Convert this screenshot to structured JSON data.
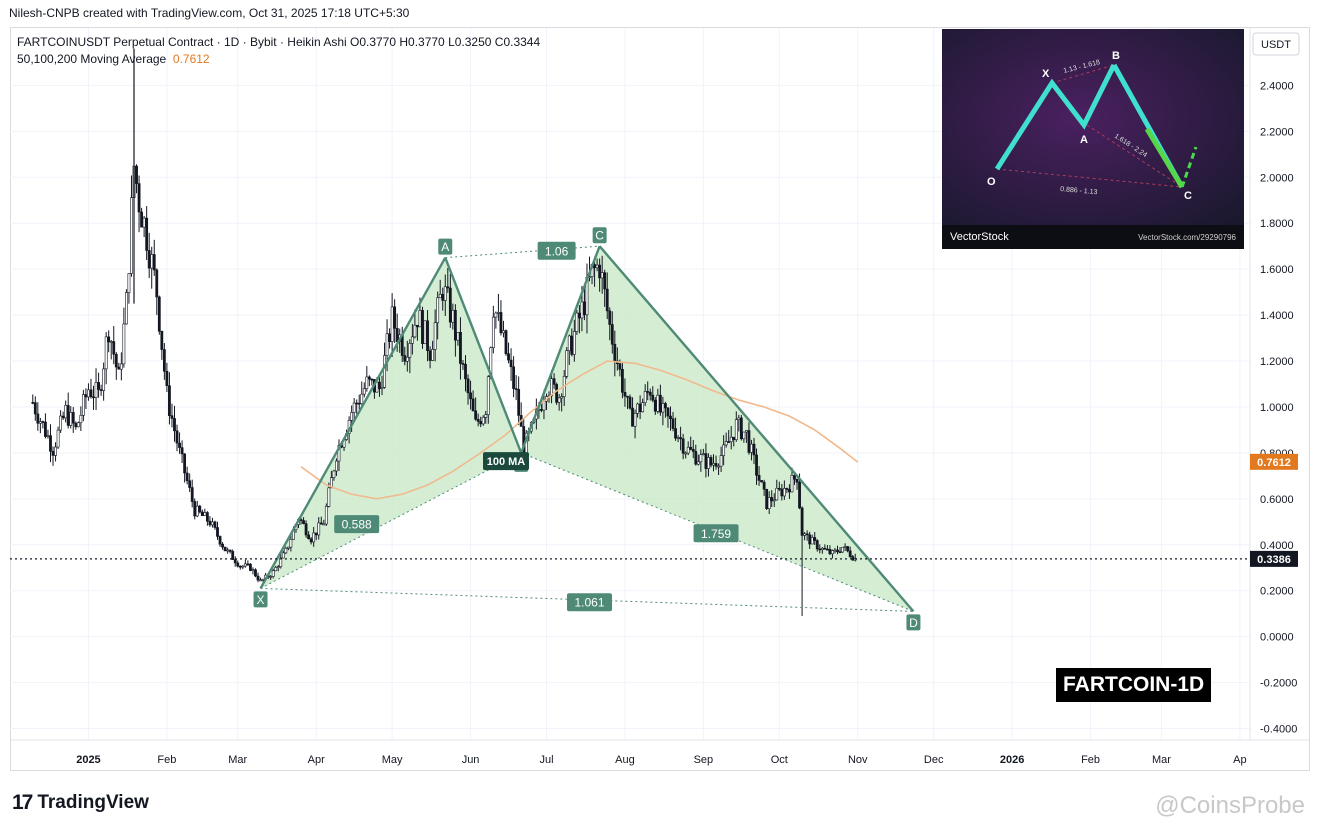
{
  "credit_line": "Nilesh-CNPB created with TradingView.com, Oct 31, 2025 17:18 UTC+5:30",
  "legend": {
    "symbol_line": "FARTCOINUSDT Perpetual Contract · 1D · Bybit · Heikin Ashi  O0.3770  H0.3770  L0.3250  C0.3344",
    "ma_label": "50,100,200 Moving Average",
    "ma_value": "0.7612"
  },
  "branding": {
    "logo_mark": "17",
    "logo_text": "TradingView",
    "watermark": "@CoinsProbe"
  },
  "inset": {
    "brand": "VectorStock",
    "url": "VectorStock.com/29290796"
  },
  "corner_label": "FARTCOIN-1D",
  "colors": {
    "candle": "#131722",
    "pattern_line": "#4f8a77",
    "pattern_fill": "#c7e8c4",
    "ma": "#f0b98e",
    "ma_badge": "#e2791f",
    "price_badge": "#131722",
    "grid": "#f0f3fa"
  },
  "chart_data": {
    "type": "candlestick",
    "title": "FARTCOINUSDT Perpetual Contract · 1D · Bybit · Heikin Ashi",
    "price_unit": "USDT",
    "ylim": [
      -0.45,
      2.65
    ],
    "y_ticks": [
      "2.4000",
      "2.2000",
      "2.0000",
      "1.8000",
      "1.6000",
      "1.4000",
      "1.2000",
      "1.0000",
      "0.8000",
      "0.6000",
      "0.4000",
      "0.2000",
      "0.0000",
      "-0.2000",
      "-0.4000"
    ],
    "y_tick_values": [
      2.4,
      2.2,
      2.0,
      1.8,
      1.6,
      1.4,
      1.2,
      1.0,
      0.8,
      0.6,
      0.4,
      0.2,
      0.0,
      -0.2,
      -0.4
    ],
    "x_ticks": [
      {
        "label": "2025",
        "date": "2025-01-01"
      },
      {
        "label": "Feb",
        "date": "2025-02-01"
      },
      {
        "label": "Mar",
        "date": "2025-03-01"
      },
      {
        "label": "Apr",
        "date": "2025-04-01"
      },
      {
        "label": "May",
        "date": "2025-05-01"
      },
      {
        "label": "Jun",
        "date": "2025-06-01"
      },
      {
        "label": "Jul",
        "date": "2025-07-01"
      },
      {
        "label": "Aug",
        "date": "2025-08-01"
      },
      {
        "label": "Sep",
        "date": "2025-09-01"
      },
      {
        "label": "Oct",
        "date": "2025-10-01"
      },
      {
        "label": "Nov",
        "date": "2025-11-01"
      },
      {
        "label": "Dec",
        "date": "2025-12-01"
      },
      {
        "label": "2026",
        "date": "2026-01-01"
      },
      {
        "label": "Feb",
        "date": "2026-02-01"
      },
      {
        "label": "Mar",
        "date": "2026-03-01"
      },
      {
        "label": "Ap",
        "date": "2026-04-01"
      }
    ],
    "last_ohlc": {
      "open": 0.377,
      "high": 0.377,
      "low": 0.325,
      "close": 0.3344
    },
    "current_price": 0.3386,
    "current_price_label": "0.3386",
    "ma_value": 0.7612,
    "ma_value_label": "0.7612",
    "ma_marker_label": "100 MA",
    "ma_marker": {
      "date": "2025-06-15",
      "price": 0.76
    },
    "price_path": [
      {
        "date": "2024-12-10",
        "price": 1.02
      },
      {
        "date": "2024-12-14",
        "price": 0.92
      },
      {
        "date": "2024-12-18",
        "price": 0.82
      },
      {
        "date": "2024-12-23",
        "price": 0.98
      },
      {
        "date": "2024-12-27",
        "price": 0.9
      },
      {
        "date": "2025-01-01",
        "price": 1.08
      },
      {
        "date": "2025-01-05",
        "price": 1.05
      },
      {
        "date": "2025-01-09",
        "price": 1.35
      },
      {
        "date": "2025-01-13",
        "price": 1.12
      },
      {
        "date": "2025-01-16",
        "price": 1.45
      },
      {
        "date": "2025-01-19",
        "price": 2.05
      },
      {
        "date": "2025-01-21",
        "price": 1.9
      },
      {
        "date": "2025-01-24",
        "price": 1.75
      },
      {
        "date": "2025-01-28",
        "price": 1.5
      },
      {
        "date": "2025-02-01",
        "price": 1.05
      },
      {
        "date": "2025-02-06",
        "price": 0.8
      },
      {
        "date": "2025-02-12",
        "price": 0.55
      },
      {
        "date": "2025-02-18",
        "price": 0.5
      },
      {
        "date": "2025-02-24",
        "price": 0.38
      },
      {
        "date": "2025-03-02",
        "price": 0.31
      },
      {
        "date": "2025-03-06",
        "price": 0.3
      },
      {
        "date": "2025-03-10",
        "price": 0.24
      },
      {
        "date": "2025-03-15",
        "price": 0.28
      },
      {
        "date": "2025-03-20",
        "price": 0.37
      },
      {
        "date": "2025-03-25",
        "price": 0.52
      },
      {
        "date": "2025-03-30",
        "price": 0.43
      },
      {
        "date": "2025-04-04",
        "price": 0.5
      },
      {
        "date": "2025-04-09",
        "price": 0.8
      },
      {
        "date": "2025-04-15",
        "price": 0.98
      },
      {
        "date": "2025-04-21",
        "price": 1.1
      },
      {
        "date": "2025-04-26",
        "price": 1.08
      },
      {
        "date": "2025-05-01",
        "price": 1.38
      },
      {
        "date": "2025-05-06",
        "price": 1.25
      },
      {
        "date": "2025-05-11",
        "price": 1.4
      },
      {
        "date": "2025-05-16",
        "price": 1.25
      },
      {
        "date": "2025-05-21",
        "price": 1.52
      },
      {
        "date": "2025-05-25",
        "price": 1.38
      },
      {
        "date": "2025-05-30",
        "price": 1.1
      },
      {
        "date": "2025-06-03",
        "price": 0.92
      },
      {
        "date": "2025-06-07",
        "price": 1.0
      },
      {
        "date": "2025-06-10",
        "price": 1.45
      },
      {
        "date": "2025-06-14",
        "price": 1.28
      },
      {
        "date": "2025-06-19",
        "price": 1.05
      },
      {
        "date": "2025-06-22",
        "price": 0.82
      },
      {
        "date": "2025-06-26",
        "price": 0.92
      },
      {
        "date": "2025-07-01",
        "price": 1.1
      },
      {
        "date": "2025-07-06",
        "price": 1.05
      },
      {
        "date": "2025-07-10",
        "price": 1.25
      },
      {
        "date": "2025-07-15",
        "price": 1.42
      },
      {
        "date": "2025-07-19",
        "price": 1.58
      },
      {
        "date": "2025-07-22",
        "price": 1.62
      },
      {
        "date": "2025-07-26",
        "price": 1.35
      },
      {
        "date": "2025-07-30",
        "price": 1.15
      },
      {
        "date": "2025-08-03",
        "price": 0.95
      },
      {
        "date": "2025-08-07",
        "price": 1.0
      },
      {
        "date": "2025-08-11",
        "price": 1.08
      },
      {
        "date": "2025-08-15",
        "price": 0.98
      },
      {
        "date": "2025-08-20",
        "price": 0.92
      },
      {
        "date": "2025-08-25",
        "price": 0.82
      },
      {
        "date": "2025-08-30",
        "price": 0.78
      },
      {
        "date": "2025-09-04",
        "price": 0.75
      },
      {
        "date": "2025-09-09",
        "price": 0.8
      },
      {
        "date": "2025-09-14",
        "price": 0.92
      },
      {
        "date": "2025-09-18",
        "price": 0.88
      },
      {
        "date": "2025-09-22",
        "price": 0.72
      },
      {
        "date": "2025-09-26",
        "price": 0.58
      },
      {
        "date": "2025-09-30",
        "price": 0.62
      },
      {
        "date": "2025-10-04",
        "price": 0.65
      },
      {
        "date": "2025-10-08",
        "price": 0.7
      },
      {
        "date": "2025-10-10",
        "price": 0.45
      },
      {
        "date": "2025-10-13",
        "price": 0.42
      },
      {
        "date": "2025-10-18",
        "price": 0.38
      },
      {
        "date": "2025-10-22",
        "price": 0.36
      },
      {
        "date": "2025-10-26",
        "price": 0.39
      },
      {
        "date": "2025-10-31",
        "price": 0.34
      }
    ],
    "flash_wick": {
      "date": "2025-10-10",
      "low": 0.09
    },
    "moving_average": [
      {
        "date": "2025-03-26",
        "price": 0.74
      },
      {
        "date": "2025-04-05",
        "price": 0.66
      },
      {
        "date": "2025-04-15",
        "price": 0.62
      },
      {
        "date": "2025-04-25",
        "price": 0.6
      },
      {
        "date": "2025-05-05",
        "price": 0.62
      },
      {
        "date": "2025-05-15",
        "price": 0.66
      },
      {
        "date": "2025-05-25",
        "price": 0.72
      },
      {
        "date": "2025-06-05",
        "price": 0.8
      },
      {
        "date": "2025-06-15",
        "price": 0.88
      },
      {
        "date": "2025-06-25",
        "price": 0.98
      },
      {
        "date": "2025-07-05",
        "price": 1.07
      },
      {
        "date": "2025-07-15",
        "price": 1.14
      },
      {
        "date": "2025-07-25",
        "price": 1.2
      },
      {
        "date": "2025-08-05",
        "price": 1.19
      },
      {
        "date": "2025-08-15",
        "price": 1.16
      },
      {
        "date": "2025-08-25",
        "price": 1.12
      },
      {
        "date": "2025-09-05",
        "price": 1.07
      },
      {
        "date": "2025-09-15",
        "price": 1.03
      },
      {
        "date": "2025-09-25",
        "price": 1.0
      },
      {
        "date": "2025-10-05",
        "price": 0.96
      },
      {
        "date": "2025-10-15",
        "price": 0.9
      },
      {
        "date": "2025-10-25",
        "price": 0.82
      },
      {
        "date": "2025-11-01",
        "price": 0.76
      }
    ],
    "pattern_points": [
      {
        "label": "X",
        "date": "2025-03-10",
        "price": 0.21
      },
      {
        "label": "A",
        "date": "2025-05-22",
        "price": 1.65
      },
      {
        "label": "B",
        "date": "2025-06-21",
        "price": 0.8
      },
      {
        "label": "C",
        "date": "2025-07-22",
        "price": 1.7
      },
      {
        "label": "D",
        "date": "2025-11-23",
        "price": 0.11
      }
    ],
    "ratios": [
      {
        "label": "1.06",
        "date": "2025-07-05",
        "price": 1.68
      },
      {
        "label": "0.588",
        "date": "2025-04-17",
        "price": 0.49
      },
      {
        "label": "1.759",
        "date": "2025-09-06",
        "price": 0.45
      },
      {
        "label": "1.061",
        "date": "2025-07-18",
        "price": 0.15
      }
    ]
  }
}
